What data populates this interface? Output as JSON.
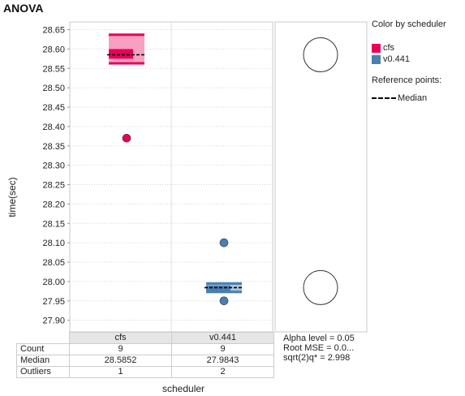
{
  "title": "ANOVA",
  "chart_data": {
    "type": "box",
    "xlabel": "scheduler",
    "ylabel": "time(sec)",
    "ylim": [
      27.87,
      28.67
    ],
    "yticks": [
      "28.65",
      "28.60",
      "28.55",
      "28.50",
      "28.45",
      "28.40",
      "28.35",
      "28.30",
      "28.25",
      "28.20",
      "28.15",
      "28.10",
      "28.05",
      "28.00",
      "27.95",
      "27.90"
    ],
    "categories": [
      "cfs",
      "v0.441"
    ],
    "series": [
      {
        "name": "cfs",
        "color": "#e8005a",
        "light": "#f7a0c0",
        "median": 28.5852,
        "q1": 28.575,
        "q3": 28.6,
        "whisker_low": 28.56,
        "whisker_high": 28.64,
        "outliers": [
          28.37
        ]
      },
      {
        "name": "v0.441",
        "color": "#4a7fb0",
        "light": "#a8c6e0",
        "median": 27.9843,
        "q1": 27.975,
        "q3": 27.99,
        "whisker_low": 27.97,
        "whisker_high": 27.998,
        "outliers": [
          28.1,
          27.95
        ]
      }
    ],
    "comparison_circles": [
      28.5852,
      27.9843
    ]
  },
  "legend": {
    "title": "Color by scheduler",
    "items": [
      {
        "label": "cfs",
        "color": "#e8005a"
      },
      {
        "label": "v0.441",
        "color": "#4a7fb0"
      }
    ]
  },
  "reference": {
    "title": "Reference points:",
    "median_label": "Median"
  },
  "table": {
    "rows": [
      {
        "label": "Count",
        "values": [
          "9",
          "9"
        ]
      },
      {
        "label": "Median",
        "values": [
          "28.5852",
          "27.9843"
        ]
      },
      {
        "label": "Outliers",
        "values": [
          "1",
          "2"
        ]
      }
    ]
  },
  "info": {
    "alpha": "Alpha level = 0.05",
    "rmse": "Root  MSE = 0.0...",
    "q": "sqrt(2)q* = 2.998"
  }
}
